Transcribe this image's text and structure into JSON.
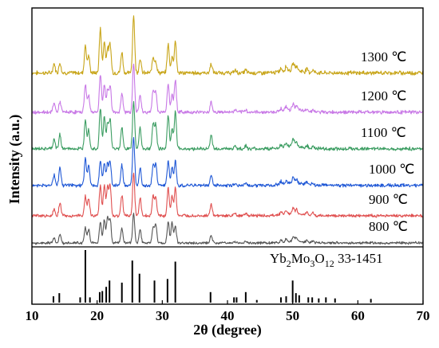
{
  "chart_data": {
    "type": "line",
    "xlabel": "2θ (degree)",
    "ylabel": "Intensity (a.u.)",
    "xlim": [
      10,
      70
    ],
    "x_ticks": [
      "10",
      "20",
      "30",
      "40",
      "50",
      "60",
      "70"
    ],
    "grid": false,
    "legend": "labels right of each trace",
    "peak_positions": [
      13.4,
      14.3,
      18.2,
      18.7,
      20.5,
      21.1,
      21.6,
      22.0,
      23.8,
      25.6,
      26.6,
      28.6,
      29.0,
      30.9,
      31.5,
      32.0,
      37.5,
      41.2,
      42.8,
      48.2,
      49.0,
      50.1,
      50.6,
      52.2,
      53.1
    ],
    "series": [
      {
        "name": "1300 ℃",
        "color": "#c8a519",
        "order": 0,
        "intensities": [
          0.16,
          0.18,
          0.48,
          0.3,
          0.78,
          0.55,
          0.42,
          0.5,
          0.36,
          1.0,
          0.25,
          0.28,
          0.2,
          0.5,
          0.28,
          0.56,
          0.16,
          0.05,
          0.05,
          0.06,
          0.08,
          0.12,
          0.08,
          0.06,
          0.05
        ]
      },
      {
        "name": "1200 ℃",
        "color": "#c878e6",
        "order": 1,
        "intensities": [
          0.2,
          0.22,
          0.58,
          0.35,
          0.78,
          0.58,
          0.45,
          0.55,
          0.38,
          1.0,
          0.35,
          0.45,
          0.42,
          0.6,
          0.35,
          0.68,
          0.22,
          0.05,
          0.05,
          0.06,
          0.08,
          0.14,
          0.08,
          0.06,
          0.05
        ]
      },
      {
        "name": "1100 ℃",
        "color": "#3c9d62",
        "order": 2,
        "intensities": [
          0.2,
          0.3,
          0.62,
          0.4,
          0.86,
          0.66,
          0.52,
          0.62,
          0.45,
          1.0,
          0.45,
          0.52,
          0.5,
          0.7,
          0.42,
          0.78,
          0.3,
          0.06,
          0.06,
          0.06,
          0.08,
          0.16,
          0.1,
          0.06,
          0.05
        ]
      },
      {
        "name": "1000 ℃",
        "color": "#2159d6",
        "order": 3,
        "intensities": [
          0.22,
          0.4,
          0.55,
          0.42,
          0.52,
          0.48,
          0.45,
          0.48,
          0.42,
          1.0,
          0.38,
          0.42,
          0.44,
          0.5,
          0.38,
          0.5,
          0.22,
          0.05,
          0.05,
          0.06,
          0.07,
          0.12,
          0.09,
          0.06,
          0.05
        ]
      },
      {
        "name": "900 ℃",
        "color": "#e05050",
        "order": 4,
        "intensities": [
          0.15,
          0.3,
          0.45,
          0.4,
          0.7,
          0.72,
          0.65,
          0.7,
          0.48,
          1.0,
          0.42,
          0.45,
          0.42,
          0.64,
          0.45,
          0.66,
          0.25,
          0.06,
          0.06,
          0.07,
          0.08,
          0.14,
          0.1,
          0.07,
          0.06
        ]
      },
      {
        "name": "800 ℃",
        "color": "#555555",
        "order": 5,
        "intensities": [
          0.15,
          0.25,
          0.42,
          0.38,
          0.58,
          0.62,
          0.7,
          0.66,
          0.42,
          0.8,
          0.36,
          0.42,
          0.5,
          0.58,
          0.55,
          0.48,
          0.22,
          0.05,
          0.05,
          0.06,
          0.08,
          0.12,
          0.09,
          0.06,
          0.05
        ]
      }
    ],
    "reference": {
      "label_prefix": "Yb",
      "label_sub1": "2",
      "label_mid": "Mo",
      "label_sub2": "3",
      "label_mid2": "O",
      "label_sub3": "12",
      "label_suffix": " 33-1451",
      "positions": [
        13.3,
        14.2,
        17.4,
        18.2,
        18.9,
        20.4,
        20.8,
        21.4,
        21.9,
        23.8,
        25.4,
        26.5,
        28.8,
        30.8,
        32.0,
        37.4,
        41.0,
        41.4,
        42.8,
        44.5,
        48.2,
        49.0,
        50.0,
        50.5,
        51.0,
        52.4,
        53.0,
        54.0,
        55.1,
        56.5,
        62.0
      ],
      "intensities": [
        0.12,
        0.18,
        0.1,
        1.0,
        0.1,
        0.2,
        0.22,
        0.3,
        0.42,
        0.38,
        0.8,
        0.55,
        0.42,
        0.45,
        0.78,
        0.2,
        0.1,
        0.1,
        0.2,
        0.05,
        0.1,
        0.12,
        0.42,
        0.18,
        0.14,
        0.1,
        0.1,
        0.08,
        0.1,
        0.08,
        0.07
      ]
    }
  }
}
